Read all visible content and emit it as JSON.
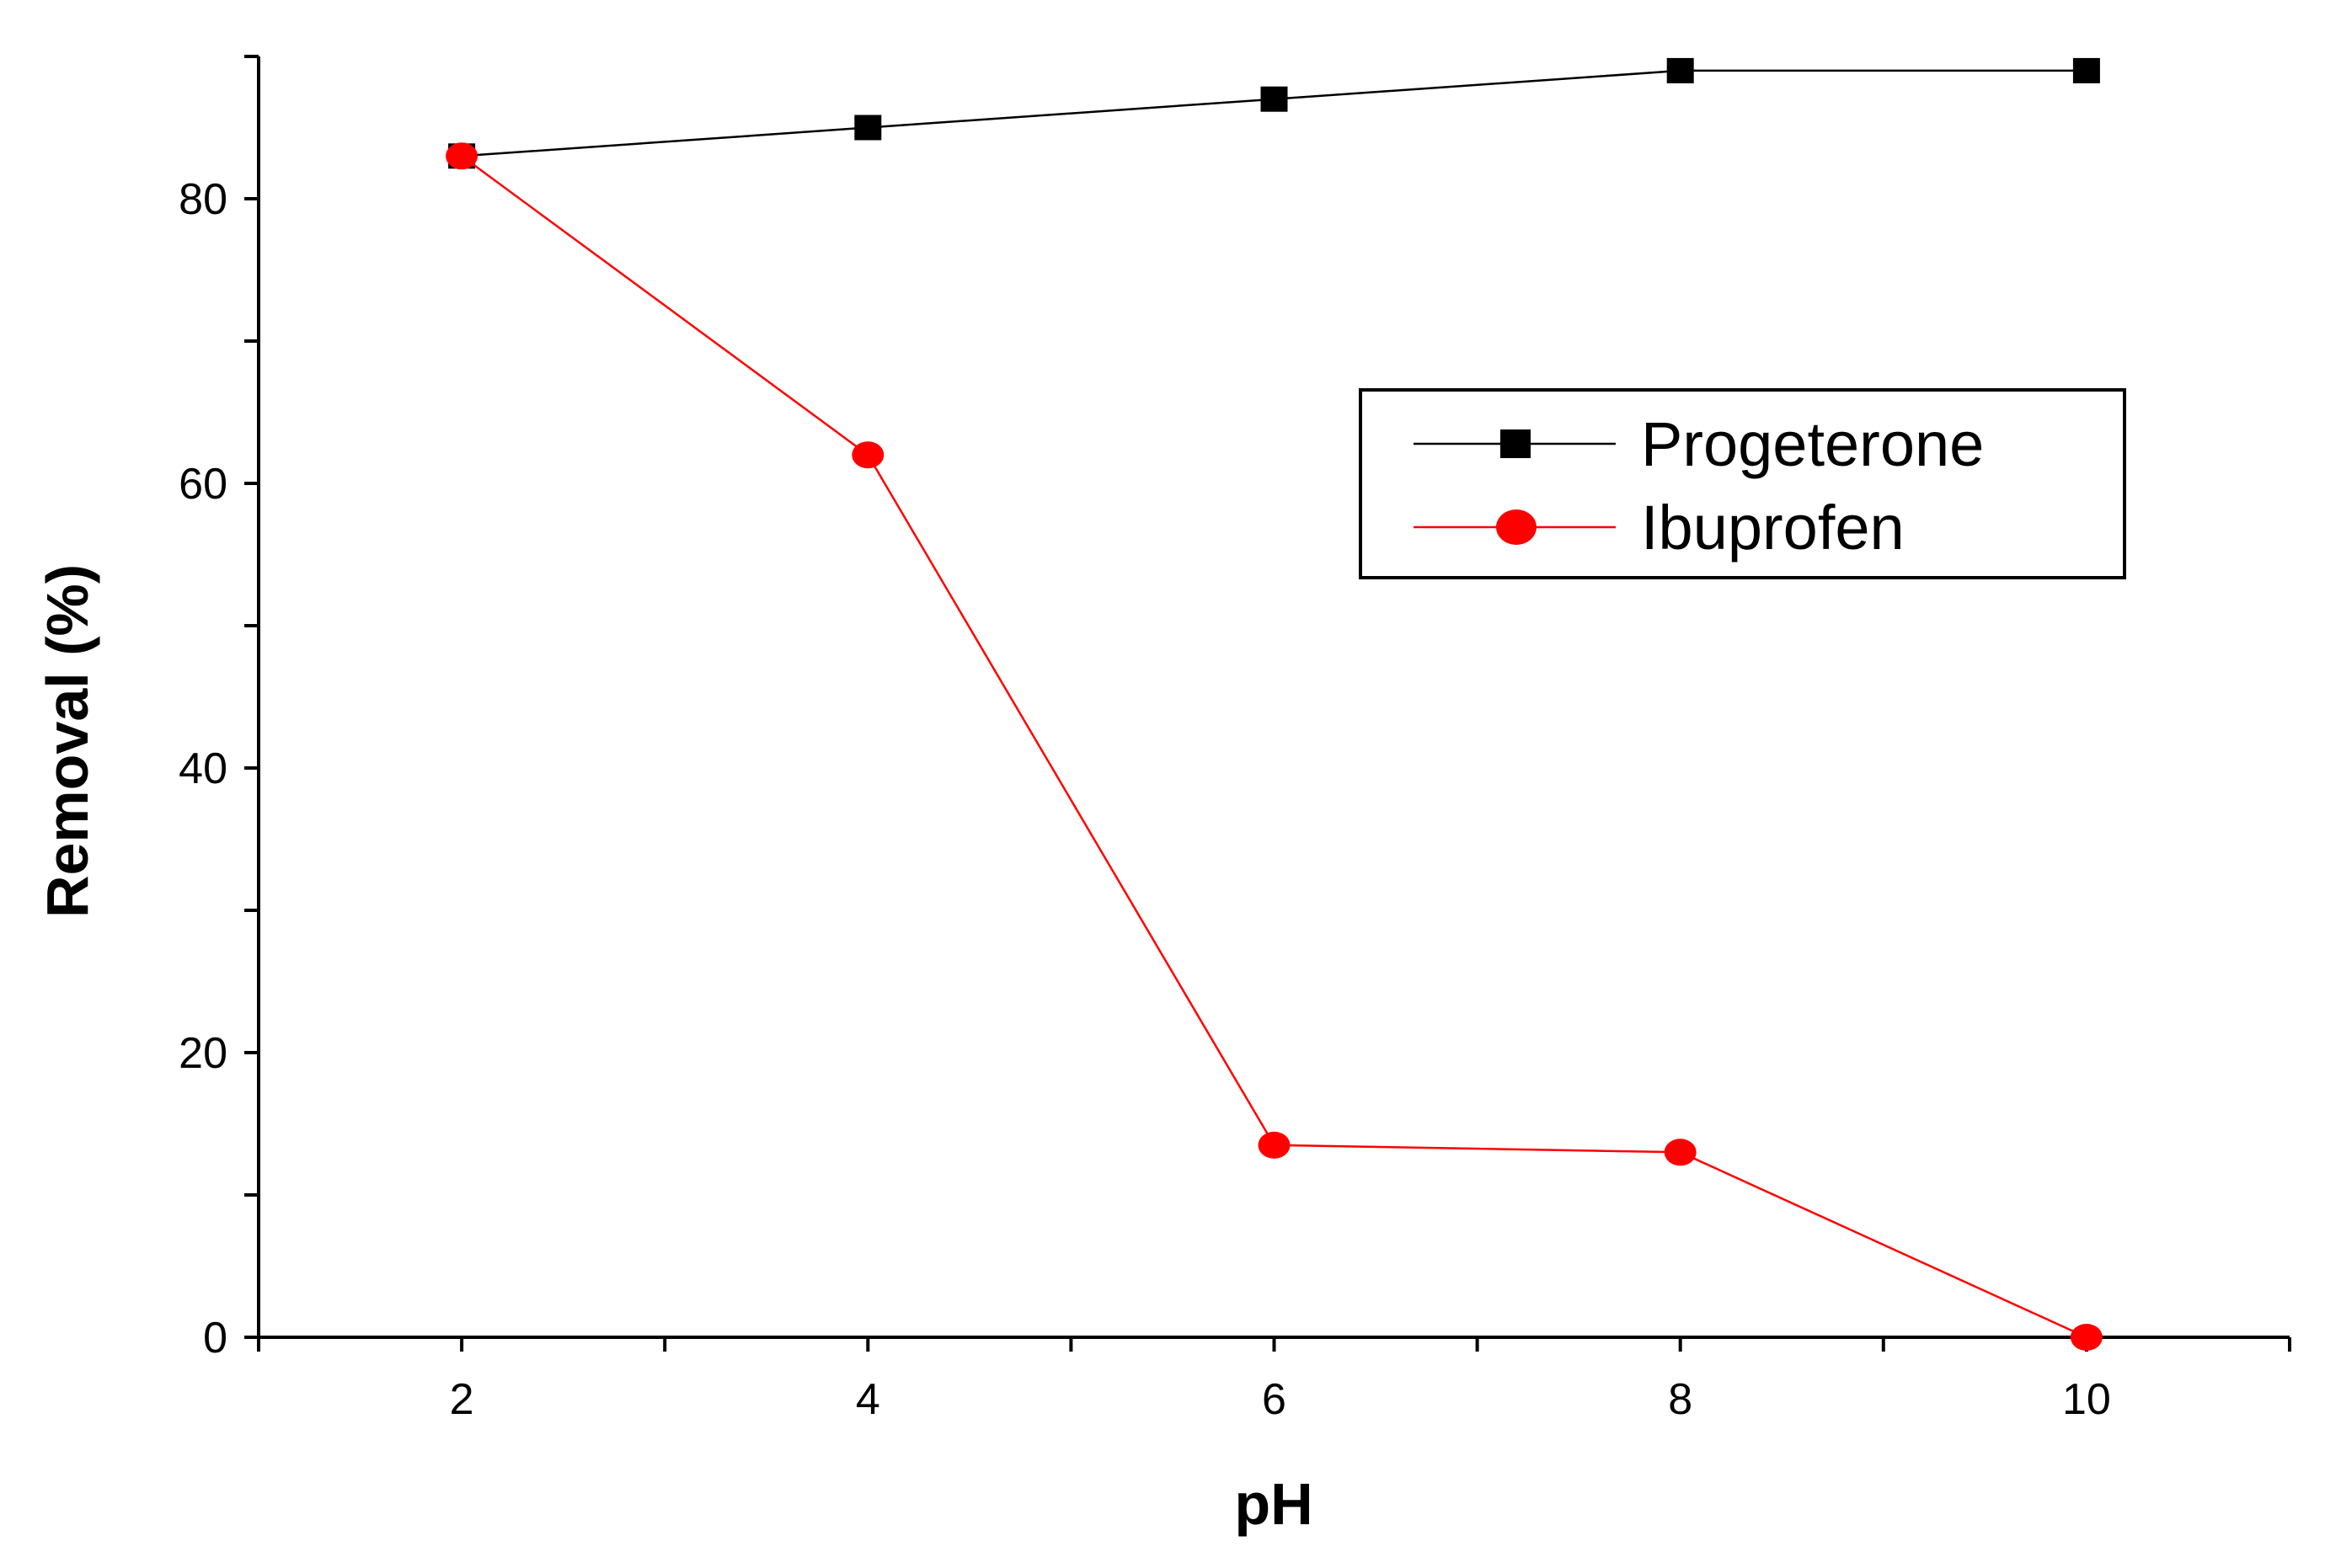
{
  "chart_data": {
    "type": "line",
    "xlabel": "pH",
    "ylabel": "Removal (%)",
    "xlim": [
      1,
      11
    ],
    "ylim": [
      0,
      90
    ],
    "x_ticks": [
      2,
      4,
      6,
      8,
      10
    ],
    "y_ticks": [
      0,
      20,
      40,
      60,
      80
    ],
    "grid": false,
    "legend_position": "right",
    "x": [
      2,
      4,
      6,
      8,
      10
    ],
    "series": [
      {
        "name": "Progeterone",
        "values": [
          83,
          85,
          87,
          89,
          89
        ],
        "color": "#000000",
        "marker": "square"
      },
      {
        "name": "Ibuprofen",
        "values": [
          83,
          62,
          13.5,
          13,
          0
        ],
        "color": "#ff0000",
        "marker": "circle"
      }
    ]
  }
}
